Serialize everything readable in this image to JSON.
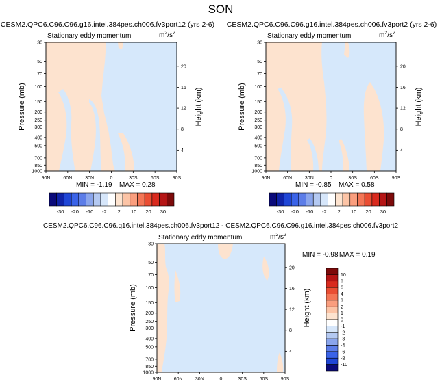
{
  "page_title": "SON",
  "colors": {
    "neg_small": "#d6e8fb",
    "pos_small": "#fde3cf",
    "neutral": "#ffffff"
  },
  "y_axis_left": {
    "label": "Pressure (mb)",
    "ticks": [
      "30",
      "50",
      "70",
      "100",
      "150",
      "200",
      "250",
      "300",
      "400",
      "500",
      "700",
      "850",
      "1000"
    ]
  },
  "y_axis_right": {
    "label": "Height (km)",
    "ticks": [
      "20",
      "16",
      "12",
      "8",
      "4"
    ]
  },
  "x_axis": {
    "ticks": [
      "90N",
      "60N",
      "30N",
      "0",
      "30S",
      "60S",
      "90S"
    ]
  },
  "panels": [
    {
      "title": "CESM2.QPC6.C96.C96.g16.intel.384pes.ch006.fv3port12 (yrs 2-6)",
      "subtitle": "Stationary eddy momentum",
      "units": "m²/s²",
      "min_label": "MIN = -1.19",
      "max_label": "MAX = 0.28"
    },
    {
      "title": "CESM2.QPC6.C96.C96.g16.intel.384pes.ch006.fv3port2 (yrs 2-6)",
      "subtitle": "Stationary eddy momentum",
      "units": "m²/s²",
      "min_label": "MIN = -0.85",
      "max_label": "MAX = 0.58"
    },
    {
      "title": "CESM2.QPC6.C96.C96.g16.intel.384pes.ch006.fv3port12 - CESM2.QPC6.C96.C96.g16.intel.384pes.ch006.fv3port2",
      "subtitle": "Stationary eddy momentum",
      "units": "m²/s²",
      "min_label": "MIN = -0.98",
      "max_label": "MAX = 0.19"
    }
  ],
  "colorbar_top": {
    "labels": [
      "-30",
      "-20",
      "-10",
      "-2",
      "2",
      "10",
      "20",
      "30"
    ],
    "colors": [
      "#0a0a7a",
      "#0f23a8",
      "#1f46d6",
      "#3a63e8",
      "#5c7de8",
      "#8aa5ec",
      "#b4c9f2",
      "#d6e6fa",
      "#ffffff",
      "#fde3cf",
      "#fcc4a6",
      "#fa9e7e",
      "#f47656",
      "#ea4e33",
      "#d92a1e",
      "#b51515",
      "#7d0a0a"
    ]
  },
  "colorbar_diff": {
    "labels": [
      "10",
      "8",
      "6",
      "4",
      "3",
      "2",
      "1",
      "0",
      "-1",
      "-2",
      "-3",
      "-4",
      "-6",
      "-8",
      "-10"
    ],
    "colors": [
      "#7d0a0a",
      "#b51515",
      "#d92a1e",
      "#ea4e33",
      "#f47656",
      "#fa9e7e",
      "#fcc4a6",
      "#fde3cf",
      "#ffffff",
      "#d6e6fa",
      "#b4c9f2",
      "#8aa5ec",
      "#5c7de8",
      "#3a63e8",
      "#1f46d6",
      "#0a0a7a"
    ]
  },
  "chart_data": [
    {
      "type": "heatmap",
      "title": "CESM2.QPC6.C96.C96.g16.intel.384pes.ch006.fv3port12 (yrs 2-6)",
      "subtitle": "Stationary eddy momentum",
      "xlabel": "",
      "ylabel": "Pressure (mb)",
      "y2label": "Height (km)",
      "units": "m²/s²",
      "x_ticks": [
        "90N",
        "60N",
        "30N",
        "0",
        "30S",
        "60S",
        "90S"
      ],
      "y_ticks": [
        30,
        50,
        70,
        100,
        150,
        200,
        250,
        300,
        400,
        500,
        700,
        850,
        1000
      ],
      "y_scale": "log",
      "min": -1.19,
      "max": 0.28,
      "field_range": "values between -2 and 2 everywhere; positive (light orange) in NH and tropics, negative (light blue) in SH"
    },
    {
      "type": "heatmap",
      "title": "CESM2.QPC6.C96.C96.g16.intel.384pes.ch006.fv3port2 (yrs 2-6)",
      "subtitle": "Stationary eddy momentum",
      "xlabel": "",
      "ylabel": "Pressure (mb)",
      "y2label": "Height (km)",
      "units": "m²/s²",
      "x_ticks": [
        "90N",
        "60N",
        "30N",
        "0",
        "30S",
        "60S",
        "90S"
      ],
      "y_ticks": [
        30,
        50,
        70,
        100,
        150,
        200,
        250,
        300,
        400,
        500,
        700,
        850,
        1000
      ],
      "y_scale": "log",
      "min": -0.85,
      "max": 0.58,
      "field_range": "values between -2 and 2 everywhere"
    },
    {
      "type": "heatmap",
      "title": "CESM2.QPC6.C96.C96.g16.intel.384pes.ch006.fv3port12 - CESM2.QPC6.C96.C96.g16.intel.384pes.ch006.fv3port2",
      "subtitle": "Stationary eddy momentum",
      "xlabel": "",
      "ylabel": "Pressure (mb)",
      "y2label": "Height (km)",
      "units": "m²/s²",
      "x_ticks": [
        "90N",
        "60N",
        "30N",
        "0",
        "30S",
        "60S",
        "90S"
      ],
      "y_ticks": [
        30,
        50,
        70,
        100,
        150,
        200,
        250,
        300,
        400,
        500,
        700,
        850,
        1000
      ],
      "y_scale": "log",
      "min": -0.98,
      "max": 0.19,
      "field_range": "values between -1 and 1 everywhere; mostly negative (light blue)"
    }
  ]
}
